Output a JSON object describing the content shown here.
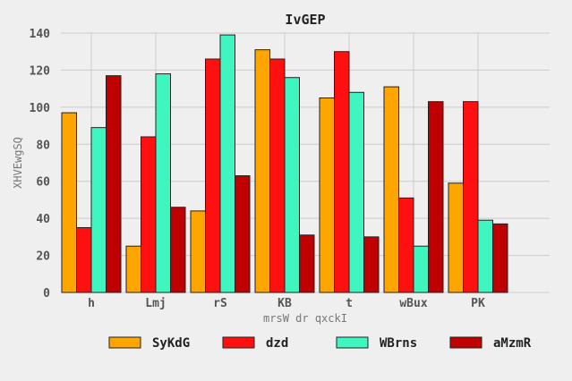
{
  "chart_data": {
    "type": "bar",
    "title": "IvGEP",
    "xlabel": "mrsW dr qxckI",
    "ylabel": "XHVEwgSQ",
    "categories": [
      "h",
      "Lmj",
      "rS",
      "KB",
      "t",
      "wBux",
      "PK"
    ],
    "ylim": [
      0,
      140
    ],
    "yticks": [
      0,
      20,
      40,
      60,
      80,
      100,
      120,
      140
    ],
    "grid": true,
    "legend_position": "bottom",
    "series": [
      {
        "name": "SyKdG",
        "color": "#ffa500",
        "values": [
          97,
          25,
          44,
          131,
          105,
          111,
          59
        ]
      },
      {
        "name": "dzd",
        "color": "#ff1010",
        "values": [
          35,
          84,
          126,
          126,
          130,
          51,
          103
        ]
      },
      {
        "name": "WBrns",
        "color": "#3ff5c0",
        "values": [
          89,
          118,
          139,
          116,
          108,
          25,
          39
        ]
      },
      {
        "name": "aMzmR",
        "color": "#c00000",
        "values": [
          117,
          46,
          63,
          31,
          30,
          103,
          37
        ]
      }
    ]
  }
}
